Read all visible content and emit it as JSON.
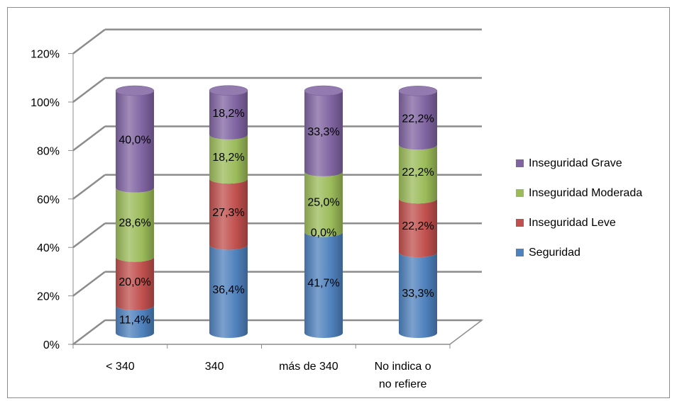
{
  "chart_data": {
    "type": "bar",
    "stacked": true,
    "three_d": true,
    "categories": [
      "< 340",
      "340",
      "más de 340",
      "No indica o\nno refiere"
    ],
    "series": [
      {
        "name": "Seguridad",
        "color": "#4f81bd",
        "values": [
          11.4,
          36.4,
          41.7,
          33.3
        ],
        "labels": [
          "11,4%",
          "36,4%",
          "41,7%",
          "33,3%"
        ]
      },
      {
        "name": "Inseguridad Leve",
        "color": "#c0504d",
        "values": [
          20.0,
          27.3,
          0.0,
          22.2
        ],
        "labels": [
          "20,0%",
          "27,3%",
          "0,0%",
          "22,2%"
        ]
      },
      {
        "name": "Inseguridad Moderada",
        "color": "#9bbb59",
        "values": [
          28.6,
          18.2,
          25.0,
          22.2
        ],
        "labels": [
          "28,6%",
          "18,2%",
          "25,0%",
          "22,2%"
        ]
      },
      {
        "name": "Inseguridad Grave",
        "color": "#8064a2",
        "values": [
          40.0,
          18.2,
          33.3,
          22.2
        ],
        "labels": [
          "40,0%",
          "18,2%",
          "33,3%",
          "22,2%"
        ]
      }
    ],
    "yticks": [
      "0%",
      "20%",
      "40%",
      "60%",
      "80%",
      "100%",
      "120%"
    ],
    "ylim": [
      0,
      120
    ],
    "grid": true,
    "legend_position": "right",
    "legend_order": [
      "Inseguridad Grave",
      "Inseguridad Moderada",
      "Inseguridad Leve",
      "Seguridad"
    ]
  }
}
